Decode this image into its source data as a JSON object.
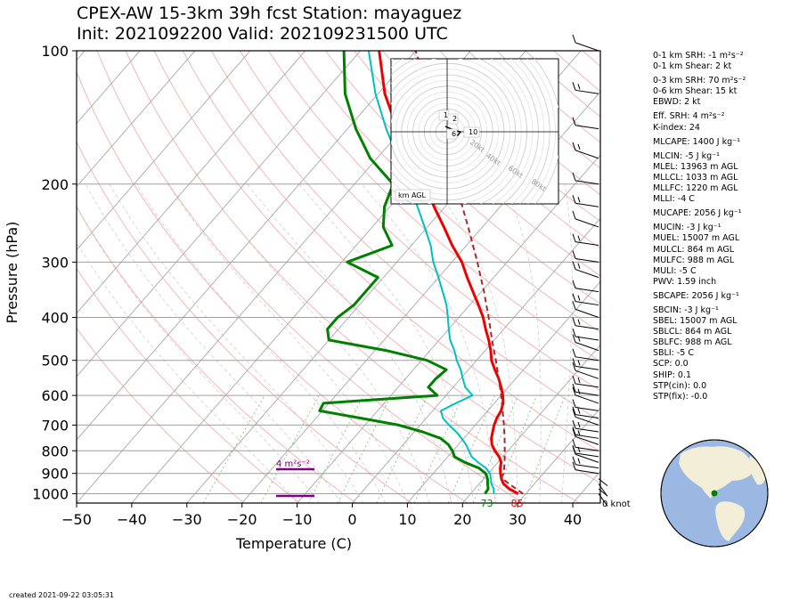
{
  "header": {
    "title_line1": "CPEX-AW 15-3km  39h fcst  Station: mayaguez",
    "title_line2": "Init: 2021092200  Valid: 202109231500 UTC"
  },
  "footer": {
    "created": "created 2021-09-22 03:05:31"
  },
  "colors": {
    "temperature": "#ee0000",
    "dewpoint": "#008000",
    "wetbulb": "#00bfbf",
    "parcel": "#a52a2a",
    "isotherm": "#b0b0b0",
    "dry_adiabat": "#f4b6b6",
    "moist_adiabat": "#cfcfcf",
    "mixing_ratio": "#90c890",
    "srh_bar": "#800080"
  },
  "chart_data": {
    "type": "line",
    "subtype": "skew-t log-p sounding",
    "xlabel": "Temperature (C)",
    "ylabel": "Pressure (hPa)",
    "xlim": [
      -50,
      45
    ],
    "ylim": [
      1050,
      100
    ],
    "x_ticks": [
      -50,
      -40,
      -30,
      -20,
      -10,
      0,
      10,
      20,
      30,
      40
    ],
    "y_ticks": [
      100,
      200,
      300,
      400,
      500,
      600,
      700,
      800,
      900,
      1000
    ],
    "y_scale": "log",
    "skew_deg_per_log10p": 70,
    "series": [
      {
        "key": "temperature",
        "points": [
          [
            1000,
            28.6
          ],
          [
            975,
            26.2
          ],
          [
            950,
            24.4
          ],
          [
            925,
            23.2
          ],
          [
            900,
            22.2
          ],
          [
            875,
            21.3
          ],
          [
            850,
            20.6
          ],
          [
            825,
            19.3
          ],
          [
            800,
            17.6
          ],
          [
            775,
            16.1
          ],
          [
            750,
            15.0
          ],
          [
            725,
            14.2
          ],
          [
            700,
            13.4
          ],
          [
            675,
            12.8
          ],
          [
            650,
            12.4
          ],
          [
            625,
            11.6
          ],
          [
            600,
            10.3
          ],
          [
            575,
            8.7
          ],
          [
            550,
            6.9
          ],
          [
            525,
            4.8
          ],
          [
            500,
            2.7
          ],
          [
            475,
            1.0
          ],
          [
            450,
            -1.0
          ],
          [
            425,
            -3.3
          ],
          [
            400,
            -5.6
          ],
          [
            375,
            -8.4
          ],
          [
            350,
            -11.5
          ],
          [
            325,
            -14.8
          ],
          [
            300,
            -18.2
          ],
          [
            275,
            -22.6
          ],
          [
            250,
            -27.0
          ],
          [
            225,
            -32.0
          ],
          [
            200,
            -37.0
          ],
          [
            175,
            -43.8
          ],
          [
            150,
            -51.0
          ],
          [
            125,
            -58.8
          ],
          [
            100,
            -66.6
          ]
        ]
      },
      {
        "key": "dewpoint",
        "points": [
          [
            1000,
            22.6
          ],
          [
            975,
            22.4
          ],
          [
            950,
            21.5
          ],
          [
            925,
            20.7
          ],
          [
            900,
            19.5
          ],
          [
            875,
            17.4
          ],
          [
            850,
            14.0
          ],
          [
            825,
            11.2
          ],
          [
            800,
            9.9
          ],
          [
            775,
            8.2
          ],
          [
            750,
            5.8
          ],
          [
            725,
            1.5
          ],
          [
            700,
            -3.9
          ],
          [
            675,
            -12.0
          ],
          [
            650,
            -20.5
          ],
          [
            625,
            -21.0
          ],
          [
            600,
            -1.6
          ],
          [
            575,
            -4.5
          ],
          [
            550,
            -4.5
          ],
          [
            525,
            -4.0
          ],
          [
            500,
            -9.0
          ],
          [
            475,
            -18.0
          ],
          [
            450,
            -30.0
          ],
          [
            425,
            -32.0
          ],
          [
            400,
            -32.0
          ],
          [
            375,
            -31.0
          ],
          [
            350,
            -31.0
          ],
          [
            325,
            -31.0
          ],
          [
            300,
            -39.0
          ],
          [
            275,
            -33.5
          ],
          [
            250,
            -38.0
          ],
          [
            225,
            -41.0
          ],
          [
            200,
            -43.0
          ],
          [
            175,
            -51.2
          ],
          [
            150,
            -58.5
          ],
          [
            125,
            -66.0
          ],
          [
            100,
            -73.0
          ]
        ]
      },
      {
        "key": "wetbulb",
        "points": [
          [
            1000,
            24.2
          ],
          [
            975,
            23.4
          ],
          [
            950,
            22.2
          ],
          [
            925,
            21.3
          ],
          [
            900,
            20.3
          ],
          [
            875,
            18.7
          ],
          [
            850,
            16.4
          ],
          [
            825,
            14.3
          ],
          [
            800,
            12.9
          ],
          [
            775,
            11.4
          ],
          [
            750,
            9.6
          ],
          [
            725,
            7.6
          ],
          [
            700,
            5.2
          ],
          [
            675,
            3.0
          ],
          [
            650,
            1.5
          ],
          [
            625,
            3.0
          ],
          [
            600,
            4.8
          ],
          [
            575,
            2.2
          ],
          [
            550,
            0.4
          ],
          [
            525,
            -1.4
          ],
          [
            500,
            -3.6
          ],
          [
            475,
            -5.6
          ],
          [
            450,
            -8.0
          ],
          [
            425,
            -10.0
          ],
          [
            400,
            -12.0
          ],
          [
            375,
            -14.2
          ],
          [
            350,
            -17.0
          ],
          [
            325,
            -20.0
          ],
          [
            300,
            -23.4
          ],
          [
            275,
            -26.5
          ],
          [
            250,
            -30.5
          ],
          [
            225,
            -35.0
          ],
          [
            200,
            -40.0
          ],
          [
            175,
            -46.2
          ],
          [
            150,
            -53.0
          ],
          [
            125,
            -60.5
          ],
          [
            100,
            -68.5
          ]
        ]
      },
      {
        "key": "parcel",
        "points": [
          [
            1000,
            29.5
          ],
          [
            950,
            25.4
          ],
          [
            920,
            23.0
          ],
          [
            900,
            22.8
          ],
          [
            850,
            21.2
          ],
          [
            800,
            19.4
          ],
          [
            750,
            17.4
          ],
          [
            700,
            15.2
          ],
          [
            650,
            12.7
          ],
          [
            600,
            10.0
          ],
          [
            550,
            6.9
          ],
          [
            500,
            3.5
          ],
          [
            450,
            -0.4
          ],
          [
            400,
            -4.6
          ],
          [
            350,
            -9.5
          ],
          [
            300,
            -15.4
          ],
          [
            250,
            -22.6
          ],
          [
            200,
            -31.6
          ],
          [
            175,
            -37.0
          ],
          [
            150,
            -43.3
          ],
          [
            125,
            -50.6
          ],
          [
            100,
            -60.0
          ]
        ]
      }
    ],
    "bottom_labels": {
      "dewpoint": "73",
      "temperature": "85"
    },
    "srh_label": "4 m²s⁻²",
    "barb_calm_label": "0 knot",
    "hodograph": {
      "rings_kt": [
        20,
        40,
        60,
        80
      ],
      "ring_labels": [
        "20kt",
        "40kt",
        "60kt",
        "80kt"
      ],
      "height_labels": [
        "1",
        "2",
        "6",
        "10"
      ],
      "corner_label": "km AGL"
    }
  },
  "indices": [
    {
      "text": "0-1 km SRH: -1 m²s⁻²",
      "gap": false
    },
    {
      "text": "0-1 km Shear: 2 kt",
      "gap": false
    },
    {
      "text": "0-3 km SRH: 70 m²s⁻²",
      "gap": true
    },
    {
      "text": "0-6 km Shear: 15 kt",
      "gap": false
    },
    {
      "text": "EBWD: 2 kt",
      "gap": false
    },
    {
      "text": "Eff. SRH: 4 m²s⁻²",
      "gap": true
    },
    {
      "text": "K-index: 24",
      "gap": false
    },
    {
      "text": "MLCAPE: 1400 J kg⁻¹",
      "gap": true
    },
    {
      "text": "MLCIN: -5 J kg⁻¹",
      "gap": true
    },
    {
      "text": "MLEL: 13963 m AGL",
      "gap": false
    },
    {
      "text": "MLLCL: 1033 m AGL",
      "gap": false
    },
    {
      "text": "MLLFC: 1220 m AGL",
      "gap": false
    },
    {
      "text": "MLLI: -4 C",
      "gap": false
    },
    {
      "text": "MUCAPE: 2056 J kg⁻¹",
      "gap": true
    },
    {
      "text": "MUCIN: -3 J kg⁻¹",
      "gap": true
    },
    {
      "text": "MUEL: 15007 m AGL",
      "gap": false
    },
    {
      "text": "MULCL: 864 m AGL",
      "gap": false
    },
    {
      "text": "MULFC: 988 m AGL",
      "gap": false
    },
    {
      "text": "MULI: -5 C",
      "gap": false
    },
    {
      "text": "PWV: 1.59 inch",
      "gap": false
    },
    {
      "text": "SBCAPE: 2056 J kg⁻¹",
      "gap": true
    },
    {
      "text": "SBCIN: -3 J kg⁻¹",
      "gap": true
    },
    {
      "text": "SBEL: 15007 m AGL",
      "gap": false
    },
    {
      "text": "SBLCL: 864 m AGL",
      "gap": false
    },
    {
      "text": "SBLFC: 988 m AGL",
      "gap": false
    },
    {
      "text": "SBLI: -5 C",
      "gap": false
    },
    {
      "text": "SCP: 0.0",
      "gap": false
    },
    {
      "text": "SHIP: 0.1",
      "gap": false
    },
    {
      "text": "STP(cin): 0.0",
      "gap": false
    },
    {
      "text": "STP(fix): -0.0",
      "gap": false
    }
  ]
}
